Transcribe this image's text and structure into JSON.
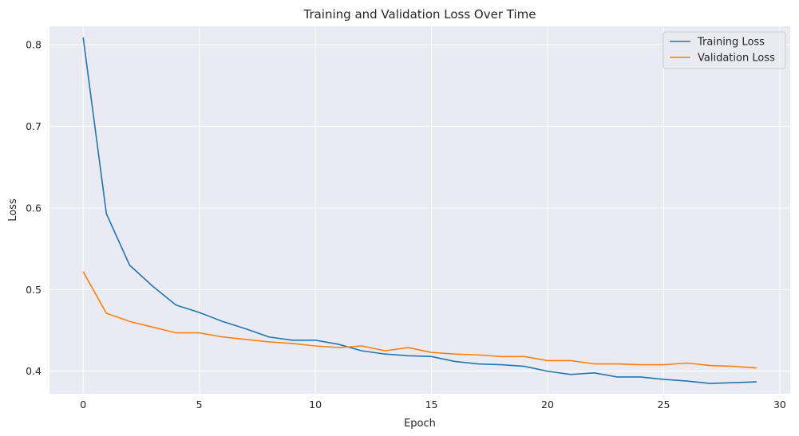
{
  "chart_data": {
    "type": "line",
    "title": "Training and Validation Loss Over Time",
    "xlabel": "Epoch",
    "ylabel": "Loss",
    "xlim": [
      -1.45,
      30.45
    ],
    "ylim": [
      0.3724,
      0.8226
    ],
    "xticks": [
      0,
      5,
      10,
      15,
      20,
      25,
      30
    ],
    "yticks": [
      0.4,
      0.5,
      0.6,
      0.7,
      0.8
    ],
    "grid": true,
    "legend_position": "upper right",
    "x": [
      0,
      1,
      2,
      3,
      4,
      5,
      6,
      7,
      8,
      9,
      10,
      11,
      12,
      13,
      14,
      15,
      16,
      17,
      18,
      19,
      20,
      21,
      22,
      23,
      24,
      25,
      26,
      27,
      28,
      29
    ],
    "series": [
      {
        "name": "Training Loss",
        "color": "#1f77b4",
        "values": [
          0.809,
          0.593,
          0.53,
          0.504,
          0.481,
          0.472,
          0.461,
          0.452,
          0.442,
          0.438,
          0.438,
          0.433,
          0.425,
          0.421,
          0.419,
          0.418,
          0.412,
          0.409,
          0.408,
          0.406,
          0.4,
          0.396,
          0.398,
          0.393,
          0.393,
          0.39,
          0.388,
          0.385,
          0.386,
          0.387
        ]
      },
      {
        "name": "Validation Loss",
        "color": "#ff7f0e",
        "values": [
          0.522,
          0.471,
          0.461,
          0.454,
          0.447,
          0.447,
          0.442,
          0.439,
          0.436,
          0.434,
          0.431,
          0.429,
          0.431,
          0.425,
          0.429,
          0.423,
          0.421,
          0.42,
          0.418,
          0.418,
          0.413,
          0.413,
          0.409,
          0.409,
          0.408,
          0.408,
          0.41,
          0.407,
          0.406,
          0.404
        ]
      }
    ],
    "style": {
      "plot_background": "#eaeaf2",
      "grid_color": "#ffffff"
    }
  }
}
